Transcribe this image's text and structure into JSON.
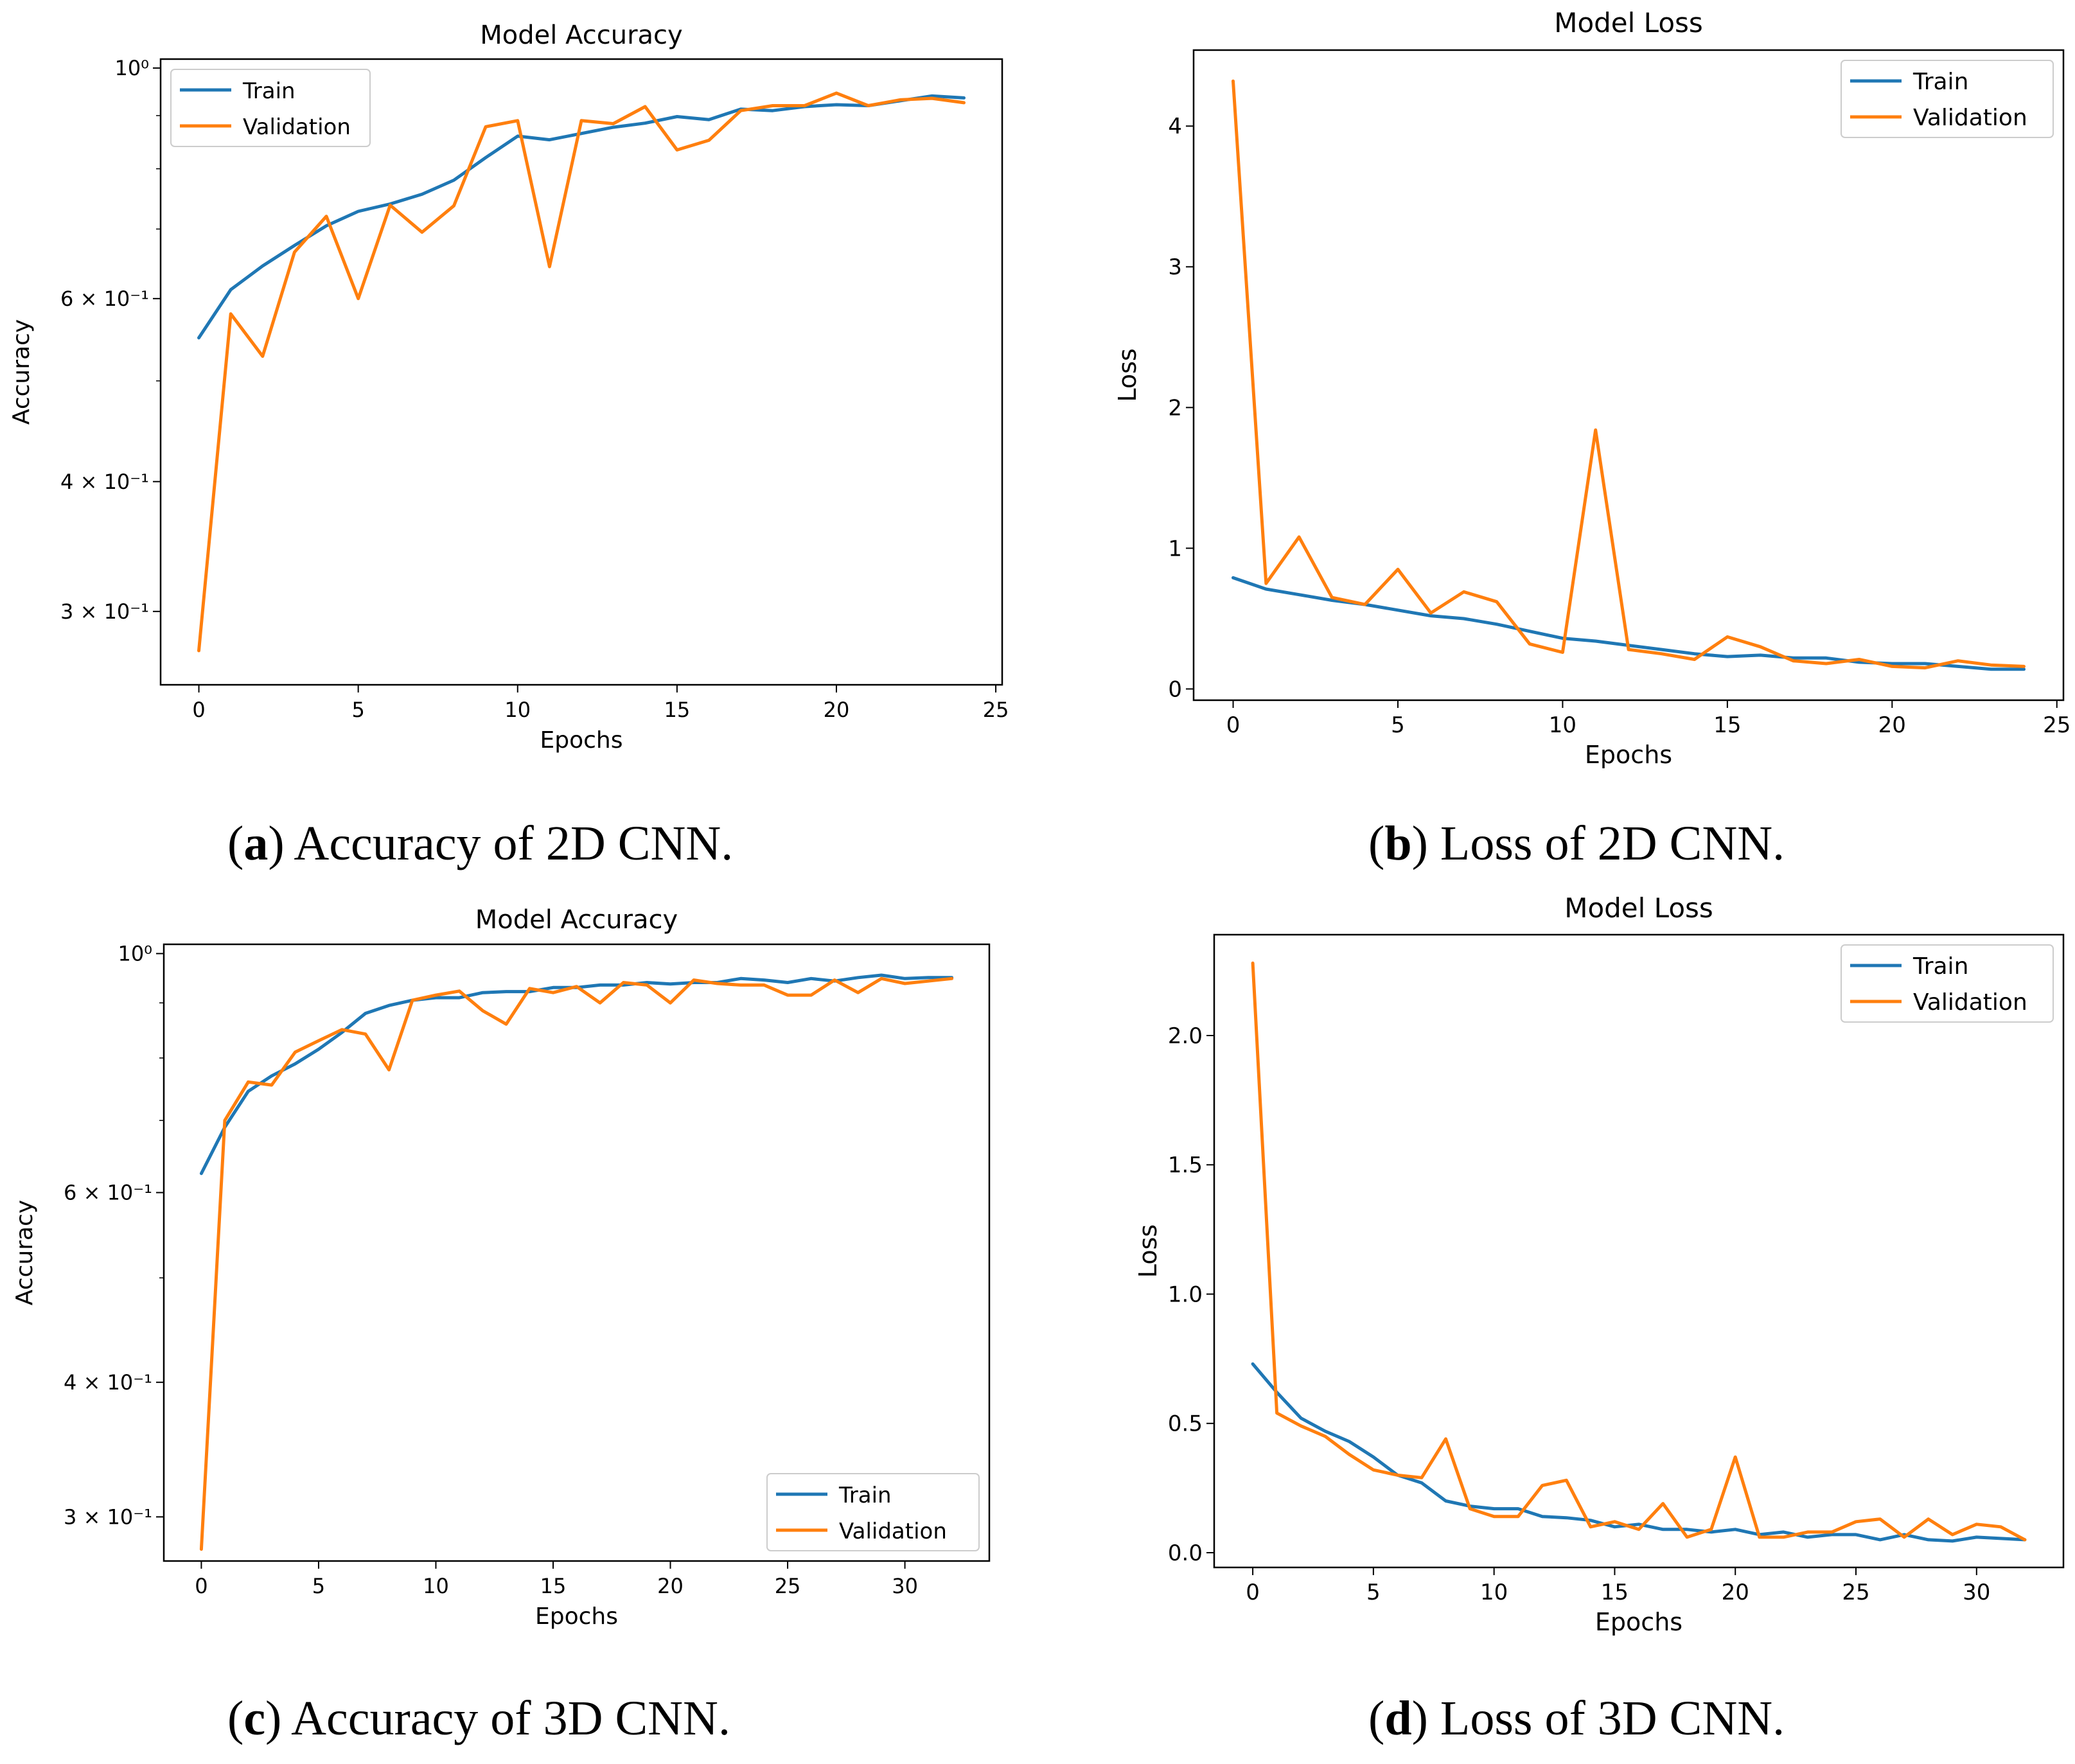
{
  "colors": {
    "train": "#1f77b4",
    "validation": "#ff7f0e"
  },
  "chart_data": [
    {
      "id": "a",
      "type": "line",
      "title": "Model Accuracy",
      "xlabel": "Epochs",
      "ylabel": "Accuracy",
      "yscale": "log",
      "xlim": [
        -1.2,
        25.2
      ],
      "ylim": [
        0.255,
        1.02
      ],
      "xticks": [
        0,
        5,
        10,
        15,
        20,
        25
      ],
      "xtick_labels": [
        "0",
        "5",
        "10",
        "15",
        "20",
        "25"
      ],
      "yticks": [
        0.3,
        0.4,
        0.6,
        1.0
      ],
      "ytick_labels": [
        "3 × 10⁻¹",
        "4 × 10⁻¹",
        "6 × 10⁻¹",
        "10⁰"
      ],
      "legend": "top-left",
      "series": [
        {
          "name": "Train",
          "x": [
            0,
            1,
            2,
            3,
            4,
            5,
            6,
            7,
            8,
            9,
            10,
            11,
            12,
            13,
            14,
            15,
            16,
            17,
            18,
            19,
            20,
            21,
            22,
            23,
            24
          ],
          "values": [
            0.55,
            0.612,
            0.645,
            0.675,
            0.705,
            0.728,
            0.74,
            0.756,
            0.78,
            0.82,
            0.86,
            0.853,
            0.865,
            0.877,
            0.885,
            0.898,
            0.892,
            0.913,
            0.91,
            0.918,
            0.922,
            0.92,
            0.93,
            0.94,
            0.936
          ]
        },
        {
          "name": "Validation",
          "x": [
            0,
            1,
            2,
            3,
            4,
            5,
            6,
            7,
            8,
            9,
            10,
            11,
            12,
            13,
            14,
            15,
            16,
            17,
            18,
            19,
            20,
            21,
            22,
            23,
            24
          ],
          "values": [
            0.275,
            0.58,
            0.528,
            0.665,
            0.72,
            0.6,
            0.738,
            0.695,
            0.737,
            0.878,
            0.89,
            0.644,
            0.89,
            0.884,
            0.918,
            0.834,
            0.852,
            0.91,
            0.92,
            0.92,
            0.946,
            0.92,
            0.932,
            0.935,
            0.926
          ]
        }
      ]
    },
    {
      "id": "b",
      "type": "line",
      "title": "Model Loss",
      "xlabel": "Epochs",
      "ylabel": "Loss",
      "yscale": "linear",
      "xlim": [
        -1.2,
        25.2
      ],
      "ylim": [
        -0.08,
        4.54
      ],
      "xticks": [
        0,
        5,
        10,
        15,
        20,
        25
      ],
      "xtick_labels": [
        "0",
        "5",
        "10",
        "15",
        "20",
        "25"
      ],
      "yticks": [
        0,
        1,
        2,
        3,
        4
      ],
      "ytick_labels": [
        "0",
        "1",
        "2",
        "3",
        "4"
      ],
      "legend": "top-right",
      "series": [
        {
          "name": "Train",
          "x": [
            0,
            1,
            2,
            3,
            4,
            5,
            6,
            7,
            8,
            9,
            10,
            11,
            12,
            13,
            14,
            15,
            16,
            17,
            18,
            19,
            20,
            21,
            22,
            23,
            24
          ],
          "values": [
            0.79,
            0.71,
            0.67,
            0.63,
            0.6,
            0.56,
            0.52,
            0.5,
            0.46,
            0.41,
            0.36,
            0.34,
            0.31,
            0.28,
            0.25,
            0.23,
            0.24,
            0.22,
            0.22,
            0.19,
            0.18,
            0.18,
            0.16,
            0.14,
            0.14
          ]
        },
        {
          "name": "Validation",
          "x": [
            0,
            1,
            2,
            3,
            4,
            5,
            6,
            7,
            8,
            9,
            10,
            11,
            12,
            13,
            14,
            15,
            16,
            17,
            18,
            19,
            20,
            21,
            22,
            23,
            24
          ],
          "values": [
            4.32,
            0.75,
            1.08,
            0.65,
            0.6,
            0.85,
            0.54,
            0.69,
            0.62,
            0.32,
            0.26,
            1.84,
            0.28,
            0.25,
            0.21,
            0.37,
            0.3,
            0.2,
            0.18,
            0.21,
            0.16,
            0.15,
            0.2,
            0.17,
            0.16
          ]
        }
      ]
    },
    {
      "id": "c",
      "type": "line",
      "title": "Model Accuracy",
      "xlabel": "Epochs",
      "ylabel": "Accuracy",
      "yscale": "log",
      "xlim": [
        -1.6,
        33.6
      ],
      "ylim": [
        0.273,
        1.02
      ],
      "xticks": [
        0,
        5,
        10,
        15,
        20,
        25,
        30
      ],
      "xtick_labels": [
        "0",
        "5",
        "10",
        "15",
        "20",
        "25",
        "30"
      ],
      "yticks": [
        0.3,
        0.4,
        0.6,
        1.0
      ],
      "ytick_labels": [
        "3 × 10⁻¹",
        "4 × 10⁻¹",
        "6 × 10⁻¹",
        "10⁰"
      ],
      "legend": "bottom-right",
      "series": [
        {
          "name": "Train",
          "x": [
            0,
            1,
            2,
            3,
            4,
            5,
            6,
            7,
            8,
            9,
            10,
            11,
            12,
            13,
            14,
            15,
            16,
            17,
            18,
            19,
            20,
            21,
            22,
            23,
            24,
            25,
            26,
            27,
            28,
            29,
            30,
            31,
            32
          ],
          "values": [
            0.625,
            0.69,
            0.745,
            0.77,
            0.79,
            0.815,
            0.845,
            0.88,
            0.895,
            0.905,
            0.91,
            0.91,
            0.92,
            0.922,
            0.922,
            0.93,
            0.93,
            0.935,
            0.935,
            0.94,
            0.937,
            0.94,
            0.94,
            0.948,
            0.945,
            0.94,
            0.948,
            0.943,
            0.95,
            0.955,
            0.948,
            0.95,
            0.95
          ]
        },
        {
          "name": "Validation",
          "x": [
            0,
            1,
            2,
            3,
            4,
            5,
            6,
            7,
            8,
            9,
            10,
            11,
            12,
            13,
            14,
            15,
            16,
            17,
            18,
            19,
            20,
            21,
            22,
            23,
            24,
            25,
            26,
            27,
            28,
            29,
            30,
            31,
            32
          ],
          "values": [
            0.28,
            0.7,
            0.76,
            0.755,
            0.81,
            0.83,
            0.85,
            0.842,
            0.78,
            0.905,
            0.915,
            0.923,
            0.885,
            0.86,
            0.928,
            0.92,
            0.932,
            0.9,
            0.94,
            0.935,
            0.9,
            0.945,
            0.938,
            0.935,
            0.935,
            0.915,
            0.915,
            0.945,
            0.92,
            0.948,
            0.938,
            0.943,
            0.948
          ]
        }
      ]
    },
    {
      "id": "d",
      "type": "line",
      "title": "Model Loss",
      "xlabel": "Epochs",
      "ylabel": "Loss",
      "yscale": "linear",
      "xlim": [
        -1.6,
        33.6
      ],
      "ylim": [
        -0.057,
        2.39
      ],
      "xticks": [
        0,
        5,
        10,
        15,
        20,
        25,
        30
      ],
      "xtick_labels": [
        "0",
        "5",
        "10",
        "15",
        "20",
        "25",
        "30"
      ],
      "yticks": [
        0.0,
        0.5,
        1.0,
        1.5,
        2.0
      ],
      "ytick_labels": [
        "0.0",
        "0.5",
        "1.0",
        "1.5",
        "2.0"
      ],
      "legend": "top-right",
      "series": [
        {
          "name": "Train",
          "x": [
            0,
            1,
            2,
            3,
            4,
            5,
            6,
            7,
            8,
            9,
            10,
            11,
            12,
            13,
            14,
            15,
            16,
            17,
            18,
            19,
            20,
            21,
            22,
            23,
            24,
            25,
            26,
            27,
            28,
            29,
            30,
            31,
            32
          ],
          "values": [
            0.73,
            0.62,
            0.52,
            0.47,
            0.43,
            0.37,
            0.3,
            0.27,
            0.2,
            0.18,
            0.17,
            0.17,
            0.14,
            0.135,
            0.125,
            0.1,
            0.11,
            0.09,
            0.09,
            0.08,
            0.09,
            0.07,
            0.08,
            0.06,
            0.07,
            0.07,
            0.05,
            0.07,
            0.05,
            0.045,
            0.06,
            0.055,
            0.05
          ]
        },
        {
          "name": "Validation",
          "x": [
            0,
            1,
            2,
            3,
            4,
            5,
            6,
            7,
            8,
            9,
            10,
            11,
            12,
            13,
            14,
            15,
            16,
            17,
            18,
            19,
            20,
            21,
            22,
            23,
            24,
            25,
            26,
            27,
            28,
            29,
            30,
            31,
            32
          ],
          "values": [
            2.28,
            0.54,
            0.49,
            0.45,
            0.38,
            0.32,
            0.3,
            0.29,
            0.44,
            0.17,
            0.14,
            0.14,
            0.26,
            0.28,
            0.1,
            0.12,
            0.09,
            0.19,
            0.06,
            0.09,
            0.37,
            0.06,
            0.06,
            0.08,
            0.08,
            0.12,
            0.13,
            0.06,
            0.13,
            0.07,
            0.11,
            0.1,
            0.05
          ]
        }
      ]
    }
  ],
  "captions": [
    {
      "letter": "a",
      "text": " Accuracy of 2D CNN."
    },
    {
      "letter": "b",
      "text": " Loss of 2D CNN."
    },
    {
      "letter": "c",
      "text": " Accuracy of 3D CNN."
    },
    {
      "letter": "d",
      "text": " Loss of 3D CNN."
    }
  ]
}
